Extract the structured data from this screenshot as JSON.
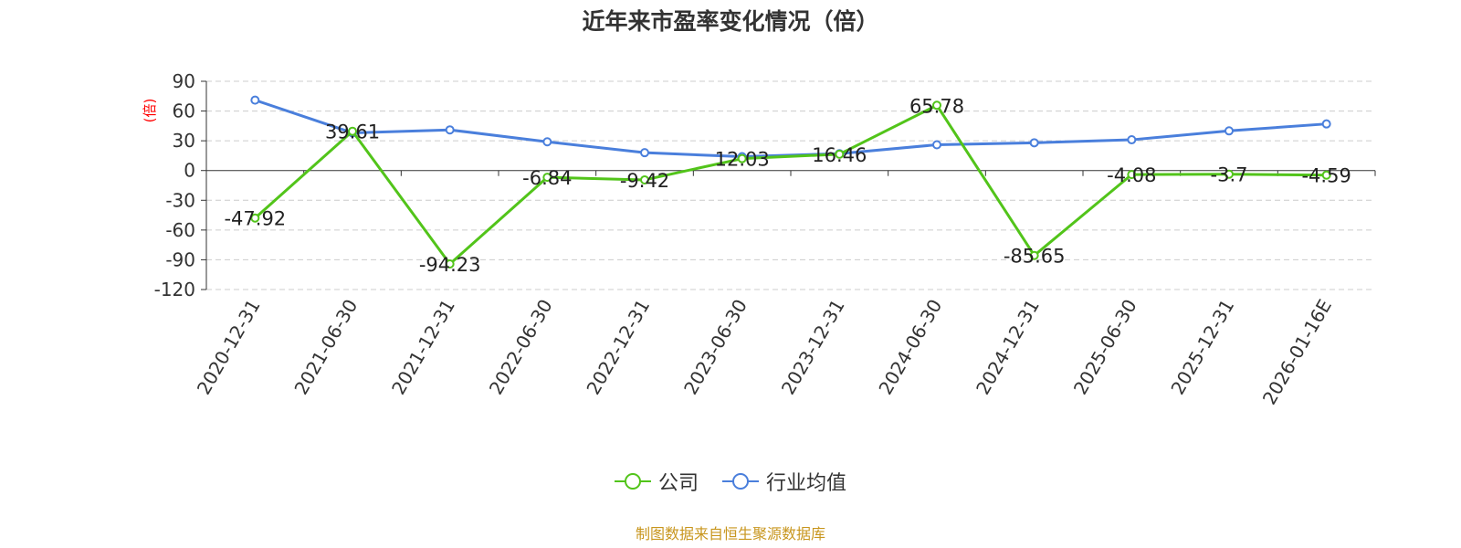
{
  "chart_data": {
    "type": "line",
    "title": "近年来市盈率变化情况（倍）",
    "ylabel": "(倍)",
    "xlabel": "",
    "categories": [
      "2020-12-31",
      "2021-06-30",
      "2021-12-31",
      "2022-06-30",
      "2022-12-31",
      "2023-06-30",
      "2023-12-31",
      "2024-06-30",
      "2024-12-31",
      "2025-06-30",
      "2025-12-31",
      "2026-01-16E"
    ],
    "ylim": [
      -120,
      90
    ],
    "yticks": [
      90,
      60,
      30,
      0,
      -30,
      -60,
      -90,
      -120
    ],
    "grid": true,
    "legend_position": "bottom",
    "series": [
      {
        "name": "公司",
        "color": "#52c41a",
        "values": [
          -47.92,
          39.61,
          -94.23,
          -6.84,
          -9.42,
          12.03,
          16.46,
          65.78,
          -85.65,
          -4.08,
          -3.7,
          -4.59
        ],
        "labels": [
          "-47.92",
          "39.61",
          "-94.23",
          "-6.84",
          "-9.42",
          "12.03",
          "16.46",
          "65.78",
          "-85.65",
          "-4.08",
          "-3.7",
          "-4.59"
        ]
      },
      {
        "name": "行业均值",
        "color": "#4a7fdc",
        "values": [
          71,
          38,
          41,
          29,
          18,
          14,
          17,
          26,
          28,
          31,
          40,
          47
        ]
      }
    ]
  },
  "source_note": "制图数据来自恒生聚源数据库"
}
